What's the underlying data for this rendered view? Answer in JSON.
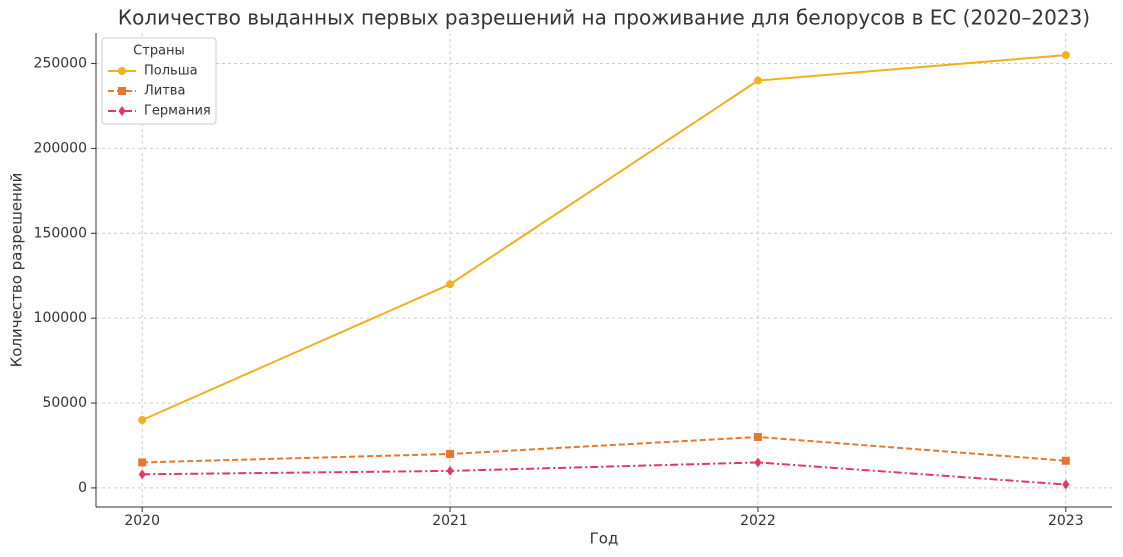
{
  "chart_data": {
    "type": "line",
    "title": "Количество выданных первых разрешений на проживание для белорусов в ЕС (2020–2023)",
    "x_label": "Год",
    "y_label": "Количество разрешений",
    "x": [
      2020,
      2021,
      2022,
      2023
    ],
    "series": [
      {
        "name": "Польша",
        "color": "#f2b01e",
        "linestyle": "solid",
        "marker": "circle",
        "values": [
          40000,
          120000,
          240000,
          255000
        ]
      },
      {
        "name": "Литва",
        "color": "#e8772e",
        "linestyle": "dashed",
        "marker": "square",
        "values": [
          15000,
          20000,
          30000,
          16000
        ]
      },
      {
        "name": "Германия",
        "color": "#e0395e",
        "linestyle": "dashdot",
        "marker": "diamond",
        "values": [
          8000,
          10000,
          15000,
          2000
        ]
      }
    ],
    "xlim": [
      2019.85,
      2023.15
    ],
    "xticks": [
      2020,
      2021,
      2022,
      2023
    ],
    "ylim": [
      -11250,
      268000
    ],
    "yticks": [
      0,
      50000,
      100000,
      150000,
      200000,
      250000
    ],
    "grid": true,
    "legend_title": "Страны",
    "legend_position": "upper-left"
  }
}
